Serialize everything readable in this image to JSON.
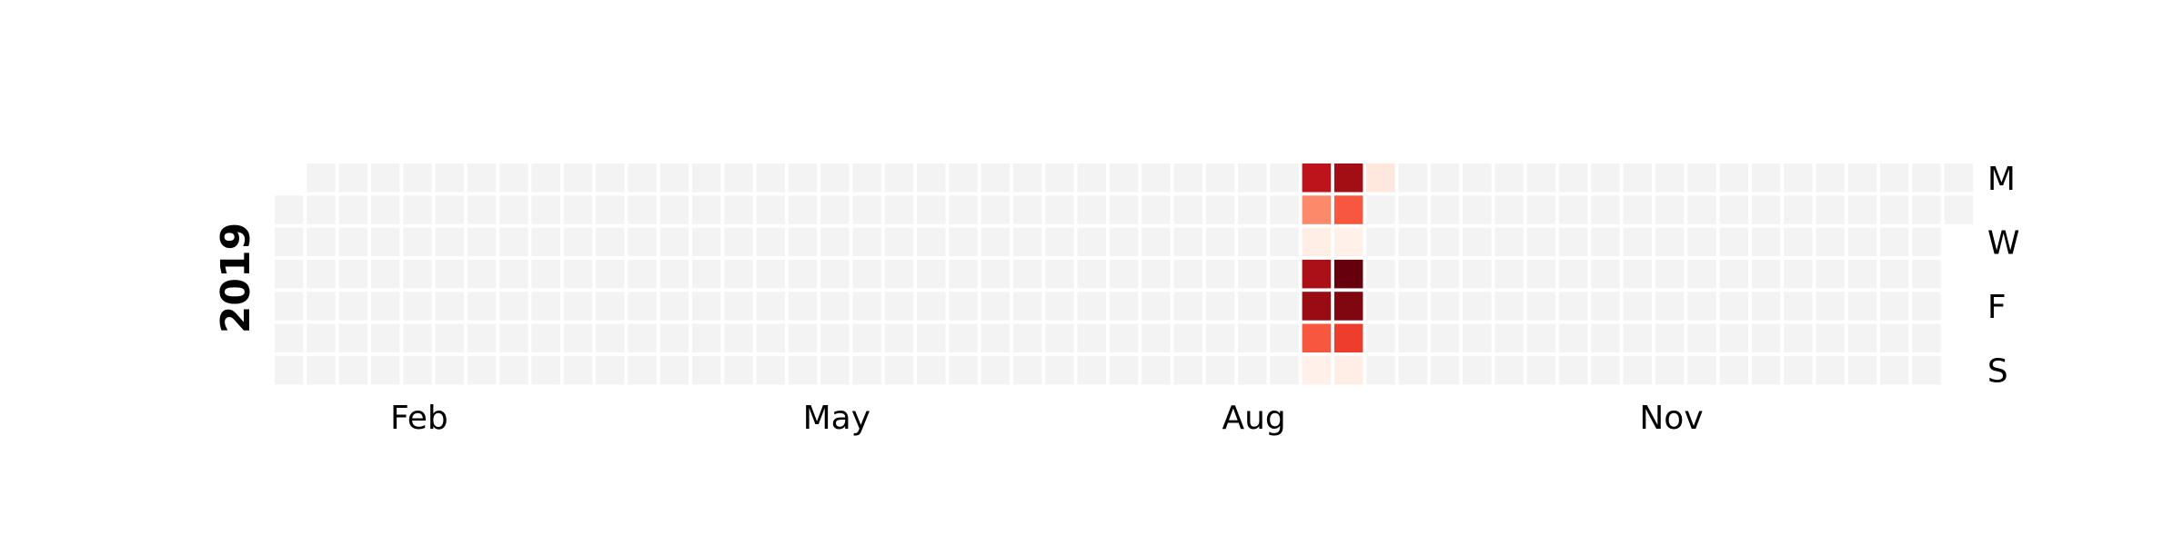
{
  "chart_data": {
    "type": "heatmap",
    "title": "",
    "year": "2019",
    "colormap": "Reds",
    "empty_color": "#f3f3f3",
    "x_tick_labels": [
      "Feb",
      "May",
      "Aug",
      "Nov"
    ],
    "y_tick_labels": [
      "M",
      "W",
      "F",
      "S"
    ],
    "y_tick_days": [
      "Mon",
      "Wed",
      "Fri",
      "Sun"
    ],
    "x_tick_dates": [
      "2019-02-01",
      "2019-05-01",
      "2019-08-01",
      "2019-11-01"
    ],
    "date_range": [
      "2019-01-01",
      "2019-12-31"
    ],
    "week_start": "Monday",
    "values": [
      {
        "date": "2019-08-12",
        "value": 0.8
      },
      {
        "date": "2019-08-13",
        "value": 0.4
      },
      {
        "date": "2019-08-14",
        "value": 0.04
      },
      {
        "date": "2019-08-15",
        "value": 0.86
      },
      {
        "date": "2019-08-16",
        "value": 0.9
      },
      {
        "date": "2019-08-17",
        "value": 0.55
      },
      {
        "date": "2019-08-18",
        "value": 0.03
      },
      {
        "date": "2019-08-19",
        "value": 0.88
      },
      {
        "date": "2019-08-20",
        "value": 0.55
      },
      {
        "date": "2019-08-21",
        "value": 0.03
      },
      {
        "date": "2019-08-22",
        "value": 1.0
      },
      {
        "date": "2019-08-23",
        "value": 0.95
      },
      {
        "date": "2019-08-24",
        "value": 0.62
      },
      {
        "date": "2019-08-25",
        "value": 0.04
      },
      {
        "date": "2019-08-26",
        "value": 0.08
      }
    ]
  }
}
